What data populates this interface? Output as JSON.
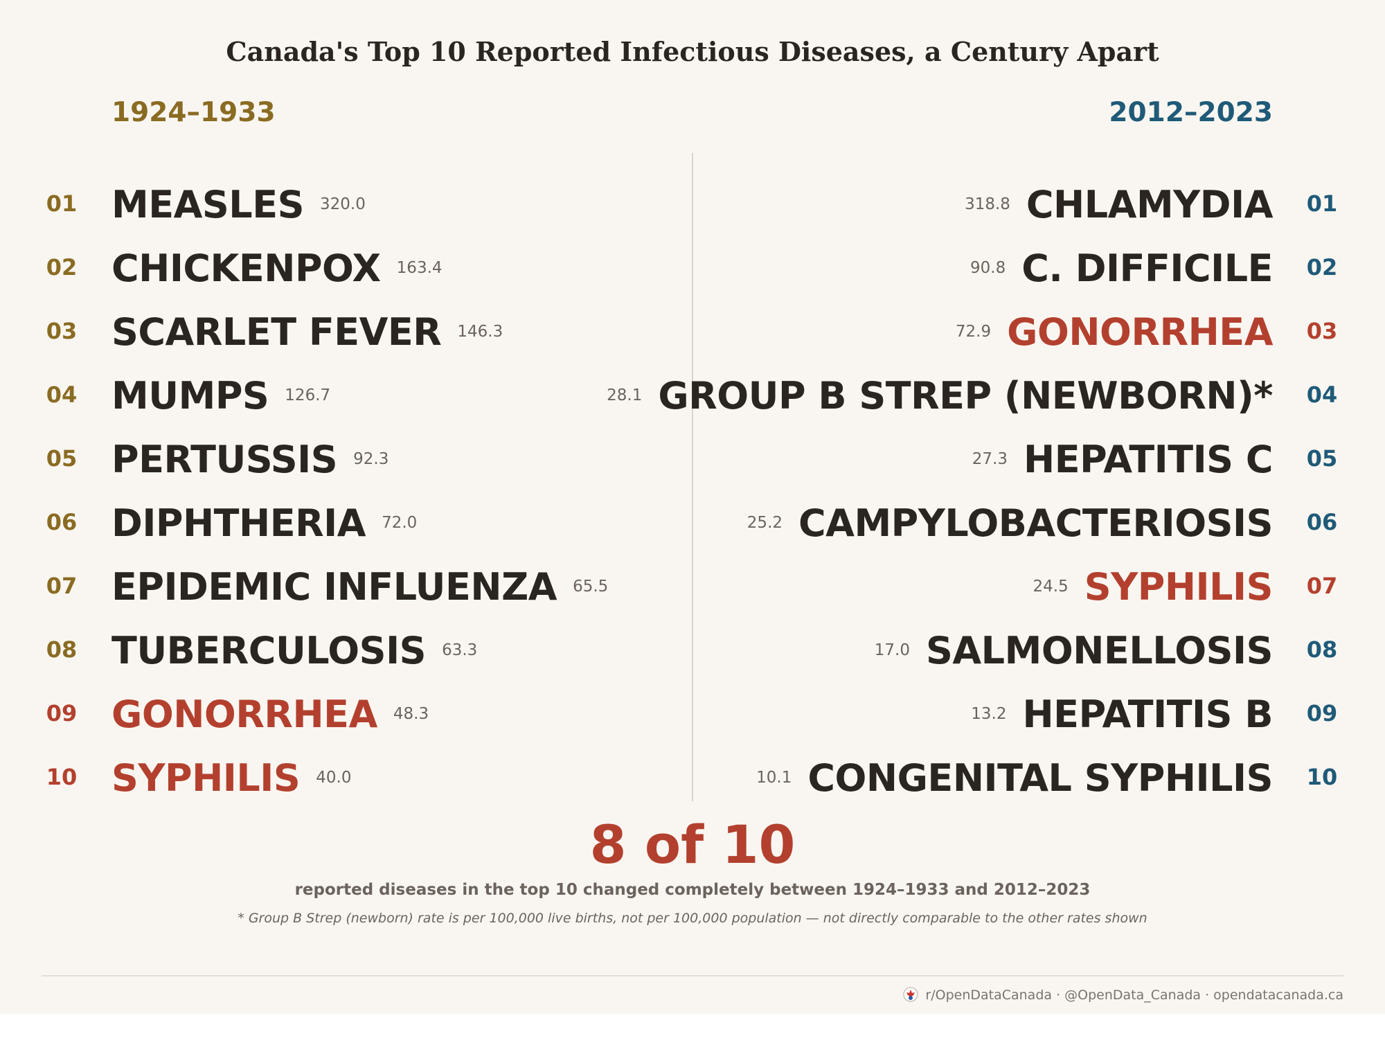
{
  "header": {
    "title": "Canada's Top 10 Reported Infectious Diseases, a Century Apart"
  },
  "columns": [
    {
      "period": "1924–1933",
      "color": "#8a6b22",
      "items": [
        {
          "rank": "01",
          "name": "MEASLES",
          "rate": "320.0",
          "color": "#2a2521"
        },
        {
          "rank": "02",
          "name": "CHICKENPOX",
          "rate": "163.4",
          "color": "#2a2521"
        },
        {
          "rank": "03",
          "name": "SCARLET FEVER",
          "rate": "146.3",
          "color": "#2a2521"
        },
        {
          "rank": "04",
          "name": "MUMPS",
          "rate": "126.7",
          "color": "#2a2521"
        },
        {
          "rank": "05",
          "name": "PERTUSSIS",
          "rate": "92.3",
          "color": "#2a2521"
        },
        {
          "rank": "06",
          "name": "DIPHTHERIA",
          "rate": "72.0",
          "color": "#2a2521"
        },
        {
          "rank": "07",
          "name": "EPIDEMIC INFLUENZA",
          "rate": "65.5",
          "color": "#2a2521"
        },
        {
          "rank": "08",
          "name": "TUBERCULOSIS",
          "rate": "63.3",
          "color": "#2a2521"
        },
        {
          "rank": "09",
          "name": "GONORRHEA",
          "rate": "48.3",
          "color": "#b3402e"
        },
        {
          "rank": "10",
          "name": "SYPHILIS",
          "rate": "40.0",
          "color": "#b3402e"
        }
      ]
    },
    {
      "period": "2012–2023",
      "color": "#1f5a78",
      "items": [
        {
          "rank": "01",
          "name": "CHLAMYDIA",
          "rate": "318.8",
          "color": "#2a2521"
        },
        {
          "rank": "02",
          "name": "C. DIFFICILE",
          "rate": "90.8",
          "color": "#2a2521"
        },
        {
          "rank": "03",
          "name": "GONORRHEA",
          "rate": "72.9",
          "color": "#b3402e"
        },
        {
          "rank": "04",
          "name": "GROUP B STREP (NEWBORN)*",
          "rate": "28.1",
          "color": "#2a2521"
        },
        {
          "rank": "05",
          "name": "HEPATITIS C",
          "rate": "27.3",
          "color": "#2a2521"
        },
        {
          "rank": "06",
          "name": "CAMPYLOBACTERIOSIS",
          "rate": "25.2",
          "color": "#2a2521"
        },
        {
          "rank": "07",
          "name": "SYPHILIS",
          "rate": "24.5",
          "color": "#b3402e"
        },
        {
          "rank": "08",
          "name": "SALMONELLOSIS",
          "rate": "17.0",
          "color": "#2a2521"
        },
        {
          "rank": "09",
          "name": "HEPATITIS B",
          "rate": "13.2",
          "color": "#2a2521"
        },
        {
          "rank": "10",
          "name": "CONGENITAL SYPHILIS",
          "rate": "10.1",
          "color": "#2a2521"
        }
      ]
    }
  ],
  "summary": {
    "headline": "8 of 10",
    "text": "reported diseases in the top 10 changed completely between 1924–1933 and 2012–2023",
    "footnote": "* Group B Strep (newborn) rate is per 100,000 live births, not per 100,000 population — not directly comparable to the other rates shown"
  },
  "footer": {
    "credits": "r/OpenDataCanada · @OpenData_Canada · opendatacanada.ca"
  }
}
